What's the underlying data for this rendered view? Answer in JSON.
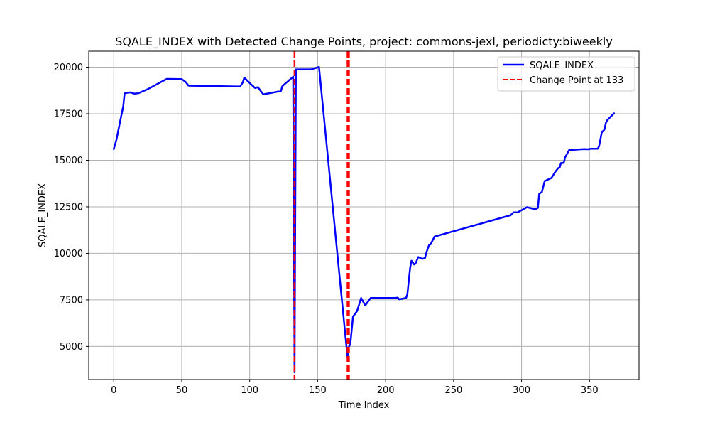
{
  "chart_data": {
    "type": "line",
    "title": "SQALE_INDEX with Detected Change Points, project: commons-jexl, periodicty:biweekly",
    "xlabel": "Time Index",
    "ylabel": "SQALE_INDEX",
    "xlim": [
      -18.4,
      386.4
    ],
    "ylim": [
      3220,
      20860
    ],
    "x_ticks": [
      0,
      50,
      100,
      150,
      200,
      250,
      300,
      350
    ],
    "y_ticks": [
      5000,
      7500,
      10000,
      12500,
      15000,
      17500,
      20000
    ],
    "x_tick_labels": [
      "0",
      "50",
      "100",
      "150",
      "200",
      "250",
      "300",
      "350"
    ],
    "y_tick_labels": [
      "5000",
      "7500",
      "10000",
      "12500",
      "15000",
      "17500",
      "20000"
    ],
    "grid": true,
    "legend_position": "top-right",
    "series": [
      {
        "name": "SQALE_INDEX",
        "color": "#0000ff",
        "style": "solid",
        "x": [
          0,
          2,
          5,
          7,
          8,
          12,
          15,
          18,
          25,
          39,
          50,
          53,
          55,
          93,
          95,
          96,
          101,
          104,
          106,
          110,
          123,
          124,
          132,
          133,
          134,
          145,
          151,
          172,
          173,
          174,
          176,
          179,
          182,
          185,
          189,
          199,
          207,
          209,
          210,
          215,
          216,
          218,
          219,
          221,
          222,
          224,
          227,
          229,
          230,
          232,
          233,
          236,
          292,
          294,
          297,
          304,
          310,
          312,
          313,
          315,
          317,
          322,
          325,
          327,
          328,
          329,
          330,
          331,
          332,
          333,
          335,
          346,
          349,
          351,
          356,
          357,
          359,
          361,
          362,
          363,
          365,
          368
        ],
        "y": [
          15600,
          16100,
          17200,
          17900,
          18600,
          18650,
          18580,
          18600,
          18820,
          19370,
          19360,
          19200,
          19010,
          18960,
          19190,
          19440,
          19080,
          18880,
          18930,
          18540,
          18720,
          18980,
          19490,
          3600,
          19880,
          19880,
          20010,
          4380,
          5000,
          5100,
          6600,
          6900,
          7600,
          7200,
          7600,
          7600,
          7600,
          7620,
          7530,
          7600,
          7800,
          9200,
          9600,
          9400,
          9450,
          9800,
          9700,
          9750,
          10050,
          10450,
          10480,
          10900,
          12050,
          12200,
          12200,
          12480,
          12370,
          12440,
          13200,
          13300,
          13880,
          14050,
          14400,
          14580,
          14600,
          14850,
          14860,
          14850,
          15150,
          15280,
          15550,
          15600,
          15590,
          15620,
          15620,
          15750,
          16500,
          16650,
          17000,
          17150,
          17300,
          17520
        ]
      }
    ],
    "change_points": {
      "name": "Change Point at 133",
      "color": "#ff0000",
      "style": "dashed",
      "x": [
        133,
        172,
        173
      ]
    }
  }
}
